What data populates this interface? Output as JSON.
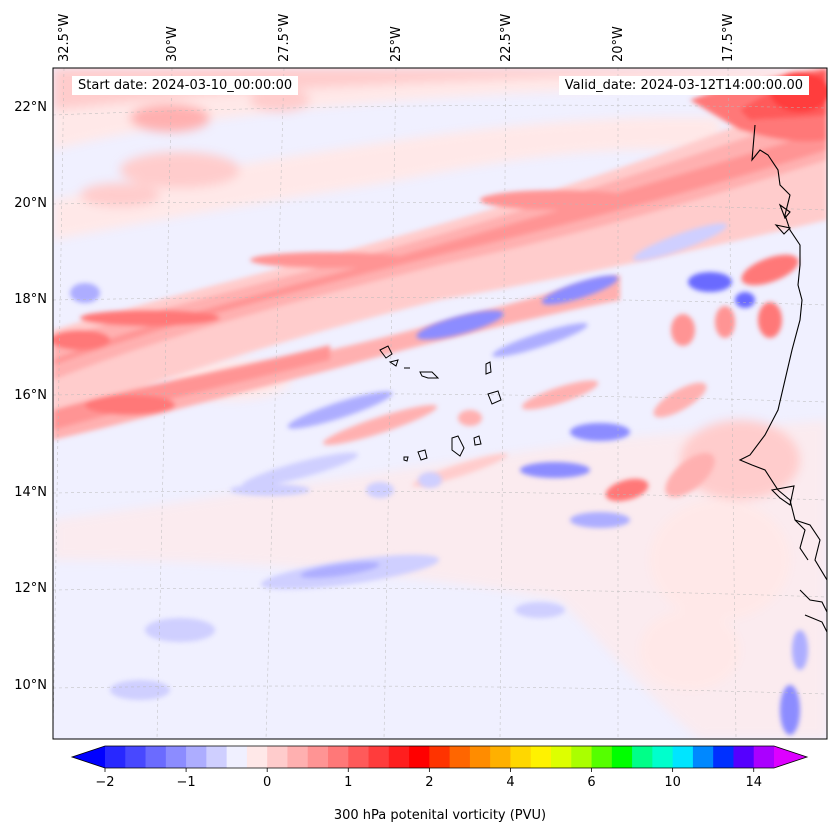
{
  "map": {
    "start_date": "Start date: 2024-03-10_00:00:00",
    "valid_date": "Valid_date: 2024-03-12T14:00:00.00",
    "lon_labels": [
      "32.5°W",
      "30°W",
      "27.5°W",
      "25°W",
      "22.5°W",
      "20°W",
      "17.5°W"
    ],
    "lat_labels": [
      "22°N",
      "20°N",
      "18°N",
      "16°N",
      "14°N",
      "12°N",
      "10°N"
    ],
    "extent": {
      "lon_min": -33.0,
      "lon_max": -15.3,
      "lat_min": 8.9,
      "lat_max": 22.8
    }
  },
  "colorbar": {
    "title": "300 hPa potenital vorticity (PVU)",
    "tick_labels": [
      "−2",
      "−1",
      "0",
      "1",
      "2",
      "4",
      "6",
      "10",
      "14"
    ],
    "levels": [
      -2,
      -1.75,
      -1.5,
      -1.25,
      -1,
      -0.75,
      -0.5,
      -0.25,
      0,
      0.25,
      0.5,
      0.75,
      1,
      1.25,
      1.5,
      1.75,
      2,
      2.5,
      3,
      3.5,
      4,
      4.5,
      5,
      5.5,
      6,
      7,
      8,
      9,
      10,
      11,
      12,
      13,
      14,
      15
    ],
    "colors": [
      "#0000ff",
      "#2828ff",
      "#4848ff",
      "#6b6bff",
      "#8c8cff",
      "#adadff",
      "#cfcfff",
      "#f0f0ff",
      "#ffe8e8",
      "#ffcccc",
      "#ffb0b0",
      "#ff9494",
      "#ff7878",
      "#ff5a5a",
      "#ff3c3c",
      "#ff1e1e",
      "#ff0000",
      "#ff3300",
      "#ff6600",
      "#ff8c00",
      "#ffb000",
      "#ffd700",
      "#fff200",
      "#ddff00",
      "#aaff00",
      "#55ff00",
      "#00ff00",
      "#00ff88",
      "#00ffcc",
      "#00e5ff",
      "#0088ff",
      "#0030ff",
      "#5500ff",
      "#aa00ff",
      "#dd00ff"
    ]
  }
}
